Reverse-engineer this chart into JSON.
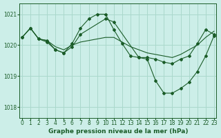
{
  "background_color": "#cceee8",
  "grid_color": "#aad8cc",
  "line_color": "#1a5c28",
  "marker_color": "#1a5c28",
  "title": "Graphe pression niveau de la mer (hPa)",
  "title_fontsize": 6.5,
  "tick_fontsize": 5.5,
  "ylim": [
    1017.65,
    1021.35
  ],
  "yticks": [
    1018,
    1019,
    1020,
    1021
  ],
  "xlim": [
    -0.3,
    23.3
  ],
  "xticks": [
    0,
    1,
    2,
    3,
    4,
    5,
    6,
    7,
    8,
    9,
    10,
    11,
    12,
    13,
    14,
    15,
    16,
    17,
    18,
    19,
    20,
    21,
    22,
    23
  ],
  "series1_x": [
    0,
    1,
    2,
    3,
    4,
    5,
    6,
    7,
    8,
    9,
    10,
    11,
    12,
    13,
    14,
    15,
    16,
    17,
    18,
    19,
    20,
    21,
    22,
    23
  ],
  "series1_y": [
    1020.25,
    1020.55,
    1020.2,
    1020.15,
    1019.95,
    1019.85,
    1020.0,
    1020.1,
    1020.15,
    1020.2,
    1020.25,
    1020.25,
    1020.1,
    1019.95,
    1019.85,
    1019.75,
    1019.7,
    1019.65,
    1019.6,
    1019.7,
    1019.85,
    1020.0,
    1020.25,
    1020.45
  ],
  "series2_x": [
    0,
    1,
    2,
    3,
    4,
    5,
    6,
    7,
    8,
    9,
    10,
    11,
    12,
    13,
    14,
    15,
    16,
    17,
    18,
    19,
    20,
    21,
    22,
    23
  ],
  "series2_y": [
    1020.25,
    1020.55,
    1020.2,
    1020.15,
    1019.85,
    1019.75,
    1020.05,
    1020.55,
    1020.85,
    1021.0,
    1021.0,
    1020.5,
    1020.05,
    1019.65,
    1019.6,
    1019.6,
    1019.55,
    1019.45,
    1019.4,
    1019.55,
    1019.65,
    1020.05,
    1020.5,
    1020.35
  ],
  "series3_x": [
    0,
    1,
    2,
    3,
    4,
    5,
    6,
    7,
    10,
    11,
    14,
    15,
    16,
    17,
    18,
    19,
    20,
    21,
    22,
    23
  ],
  "series3_y": [
    1020.25,
    1020.55,
    1020.2,
    1020.1,
    1019.85,
    1019.75,
    1019.95,
    1020.35,
    1020.85,
    1020.75,
    1019.6,
    1019.55,
    1018.85,
    1018.45,
    1018.45,
    1018.6,
    1018.8,
    1019.15,
    1019.65,
    1020.3
  ]
}
